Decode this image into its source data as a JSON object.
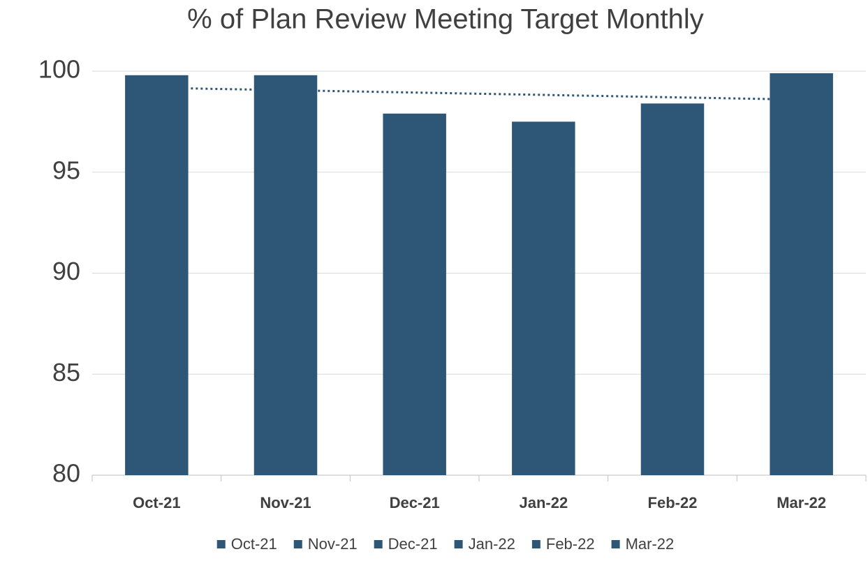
{
  "chart_data": {
    "type": "bar",
    "title": "% of Plan Review Meeting Target Monthly",
    "categories": [
      "Oct-21",
      "Nov-21",
      "Dec-21",
      "Jan-22",
      "Feb-22",
      "Mar-22"
    ],
    "values": [
      99.8,
      99.8,
      97.9,
      97.5,
      98.4,
      99.9
    ],
    "color": "#2e5677",
    "ylim": [
      80,
      100
    ],
    "yticks": [
      80,
      85,
      90,
      95,
      100
    ],
    "grid": true,
    "trendline": "linear",
    "legend": "bottom"
  }
}
